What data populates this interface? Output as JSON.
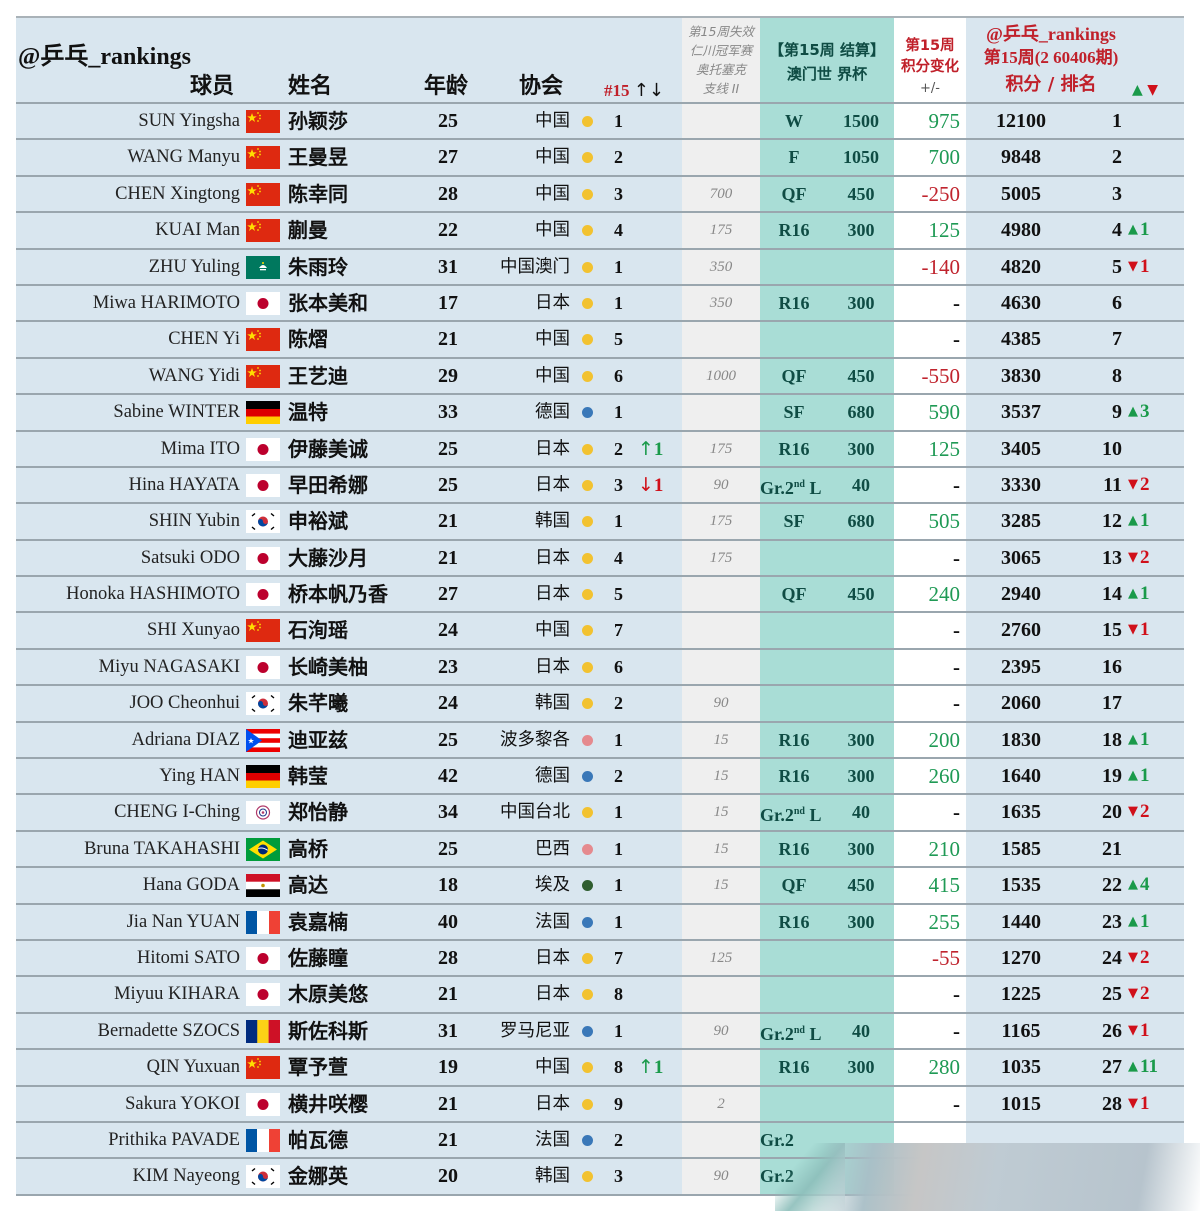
{
  "header": {
    "brand": "@乒乓_rankings",
    "col_player": "球员",
    "col_name": "姓名",
    "col_age": "年龄",
    "col_assoc": "协会",
    "col_natrank": "#15",
    "col_natrank_arrows": "↑↓",
    "col_expire": [
      "第15周失效",
      "仁川冠军赛",
      "奥托塞克",
      "支线 II"
    ],
    "col_event": [
      "【第15周 结算】",
      "澳门世 界杯"
    ],
    "col_change": [
      "第15周",
      "积分变化",
      "+/-"
    ],
    "col_rank": [
      "@乒乓_rankings",
      "第15周(2 60406期)",
      "积分 /   排名"
    ],
    "col_move_up": "▲",
    "col_move_down": "▼"
  },
  "colors": {
    "background": "#d9e6ef",
    "expire_col": "#efefef",
    "event_col": "#a9ddd6",
    "positive": "#1f9a55",
    "negative": "#c0242e",
    "header_red": "#c0202a",
    "dot_yellow": "#f2c230",
    "dot_blue": "#3a78b8",
    "dot_pink": "#e58a8e",
    "dot_green": "#2f5d2f"
  },
  "rows": [
    {
      "en": "SUN Yingsha",
      "flag": "cn",
      "cn": "孙颖莎",
      "age": "25",
      "assoc": "中国",
      "dot": "yellow",
      "nrank": "1",
      "nmove": "",
      "nmove_dir": "",
      "expire": "",
      "round": "W",
      "round_sup": "",
      "round_suffix": "",
      "pts": "1500",
      "chg": "975",
      "chg_type": "pos",
      "total": "12100",
      "rank": "1",
      "move": "",
      "move_dir": ""
    },
    {
      "en": "WANG Manyu",
      "flag": "cn",
      "cn": "王曼昱",
      "age": "27",
      "assoc": "中国",
      "dot": "yellow",
      "nrank": "2",
      "nmove": "",
      "nmove_dir": "",
      "expire": "",
      "round": "F",
      "round_sup": "",
      "round_suffix": "",
      "pts": "1050",
      "chg": "700",
      "chg_type": "pos",
      "total": "9848",
      "rank": "2",
      "move": "",
      "move_dir": ""
    },
    {
      "en": "CHEN Xingtong",
      "flag": "cn",
      "cn": "陈幸同",
      "age": "28",
      "assoc": "中国",
      "dot": "yellow",
      "nrank": "3",
      "nmove": "",
      "nmove_dir": "",
      "expire": "700",
      "round": "QF",
      "round_sup": "",
      "round_suffix": "",
      "pts": "450",
      "chg": "-250",
      "chg_type": "neg",
      "total": "5005",
      "rank": "3",
      "move": "",
      "move_dir": ""
    },
    {
      "en": "KUAI Man",
      "flag": "cn",
      "cn": "蒯曼",
      "age": "22",
      "assoc": "中国",
      "dot": "yellow",
      "nrank": "4",
      "nmove": "",
      "nmove_dir": "",
      "expire": "175",
      "round": "R16",
      "round_sup": "",
      "round_suffix": "",
      "pts": "300",
      "chg": "125",
      "chg_type": "pos",
      "total": "4980",
      "rank": "4",
      "move": "1",
      "move_dir": "up"
    },
    {
      "en": "ZHU Yuling",
      "flag": "mo",
      "cn": "朱雨玲",
      "age": "31",
      "assoc": "中国澳门",
      "dot": "yellow",
      "nrank": "1",
      "nmove": "",
      "nmove_dir": "",
      "expire": "350",
      "round": "",
      "round_sup": "",
      "round_suffix": "",
      "pts": "",
      "chg": "-140",
      "chg_type": "neg",
      "total": "4820",
      "rank": "5",
      "move": "1",
      "move_dir": "down"
    },
    {
      "en": "Miwa HARIMOTO",
      "flag": "jp",
      "cn": "张本美和",
      "age": "17",
      "assoc": "日本",
      "dot": "yellow",
      "nrank": "1",
      "nmove": "",
      "nmove_dir": "",
      "expire": "350",
      "round": "R16",
      "round_sup": "",
      "round_suffix": "",
      "pts": "300",
      "chg": "-",
      "chg_type": "nil",
      "total": "4630",
      "rank": "6",
      "move": "",
      "move_dir": ""
    },
    {
      "en": "CHEN Yi",
      "flag": "cn",
      "cn": "陈熠",
      "age": "21",
      "assoc": "中国",
      "dot": "yellow",
      "nrank": "5",
      "nmove": "",
      "nmove_dir": "",
      "expire": "",
      "round": "",
      "round_sup": "",
      "round_suffix": "",
      "pts": "",
      "chg": "-",
      "chg_type": "nil",
      "total": "4385",
      "rank": "7",
      "move": "",
      "move_dir": ""
    },
    {
      "en": "WANG Yidi",
      "flag": "cn",
      "cn": "王艺迪",
      "age": "29",
      "assoc": "中国",
      "dot": "yellow",
      "nrank": "6",
      "nmove": "",
      "nmove_dir": "",
      "expire": "1000",
      "round": "QF",
      "round_sup": "",
      "round_suffix": "",
      "pts": "450",
      "chg": "-550",
      "chg_type": "neg",
      "total": "3830",
      "rank": "8",
      "move": "",
      "move_dir": ""
    },
    {
      "en": "Sabine WINTER",
      "flag": "de",
      "cn": "温特",
      "age": "33",
      "assoc": "德国",
      "dot": "blue",
      "nrank": "1",
      "nmove": "",
      "nmove_dir": "",
      "expire": "",
      "round": "SF",
      "round_sup": "",
      "round_suffix": "",
      "pts": "680",
      "chg": "590",
      "chg_type": "pos",
      "total": "3537",
      "rank": "9",
      "move": "3",
      "move_dir": "up"
    },
    {
      "en": "Mima ITO",
      "flag": "jp",
      "cn": "伊藤美诚",
      "age": "25",
      "assoc": "日本",
      "dot": "yellow",
      "nrank": "2",
      "nmove": "1",
      "nmove_dir": "up",
      "expire": "175",
      "round": "R16",
      "round_sup": "",
      "round_suffix": "",
      "pts": "300",
      "chg": "125",
      "chg_type": "pos",
      "total": "3405",
      "rank": "10",
      "move": "",
      "move_dir": ""
    },
    {
      "en": "Hina HAYATA",
      "flag": "jp",
      "cn": "早田希娜",
      "age": "25",
      "assoc": "日本",
      "dot": "yellow",
      "nrank": "3",
      "nmove": "1",
      "nmove_dir": "down",
      "expire": "90",
      "round": "Gr.2",
      "round_sup": "nd",
      "round_suffix": " L",
      "pts": "40",
      "chg": "-",
      "chg_type": "nil",
      "total": "3330",
      "rank": "11",
      "move": "2",
      "move_dir": "down"
    },
    {
      "en": "SHIN Yubin",
      "flag": "kr",
      "cn": "申裕斌",
      "age": "21",
      "assoc": "韩国",
      "dot": "yellow",
      "nrank": "1",
      "nmove": "",
      "nmove_dir": "",
      "expire": "175",
      "round": "SF",
      "round_sup": "",
      "round_suffix": "",
      "pts": "680",
      "chg": "505",
      "chg_type": "pos",
      "total": "3285",
      "rank": "12",
      "move": "1",
      "move_dir": "up"
    },
    {
      "en": "Satsuki ODO",
      "flag": "jp",
      "cn": "大藤沙月",
      "age": "21",
      "assoc": "日本",
      "dot": "yellow",
      "nrank": "4",
      "nmove": "",
      "nmove_dir": "",
      "expire": "175",
      "round": "",
      "round_sup": "",
      "round_suffix": "",
      "pts": "",
      "chg": "-",
      "chg_type": "nil",
      "total": "3065",
      "rank": "13",
      "move": "2",
      "move_dir": "down"
    },
    {
      "en": "Honoka HASHIMOTO",
      "flag": "jp",
      "cn": "桥本帆乃香",
      "age": "27",
      "assoc": "日本",
      "dot": "yellow",
      "nrank": "5",
      "nmove": "",
      "nmove_dir": "",
      "expire": "",
      "round": "QF",
      "round_sup": "",
      "round_suffix": "",
      "pts": "450",
      "chg": "240",
      "chg_type": "pos",
      "total": "2940",
      "rank": "14",
      "move": "1",
      "move_dir": "up"
    },
    {
      "en": "SHI Xunyao",
      "flag": "cn",
      "cn": "石洵瑶",
      "age": "24",
      "assoc": "中国",
      "dot": "yellow",
      "nrank": "7",
      "nmove": "",
      "nmove_dir": "",
      "expire": "",
      "round": "",
      "round_sup": "",
      "round_suffix": "",
      "pts": "",
      "chg": "-",
      "chg_type": "nil",
      "total": "2760",
      "rank": "15",
      "move": "1",
      "move_dir": "down"
    },
    {
      "en": "Miyu NAGASAKI",
      "flag": "jp",
      "cn": "长崎美柚",
      "age": "23",
      "assoc": "日本",
      "dot": "yellow",
      "nrank": "6",
      "nmove": "",
      "nmove_dir": "",
      "expire": "",
      "round": "",
      "round_sup": "",
      "round_suffix": "",
      "pts": "",
      "chg": "-",
      "chg_type": "nil",
      "total": "2395",
      "rank": "16",
      "move": "",
      "move_dir": ""
    },
    {
      "en": "JOO Cheonhui",
      "flag": "kr",
      "cn": "朱芊曦",
      "age": "24",
      "assoc": "韩国",
      "dot": "yellow",
      "nrank": "2",
      "nmove": "",
      "nmove_dir": "",
      "expire": "90",
      "round": "",
      "round_sup": "",
      "round_suffix": "",
      "pts": "",
      "chg": "-",
      "chg_type": "nil",
      "total": "2060",
      "rank": "17",
      "move": "",
      "move_dir": ""
    },
    {
      "en": "Adriana DIAZ",
      "flag": "pr",
      "cn": "迪亚兹",
      "age": "25",
      "assoc": "波多黎各",
      "dot": "pink",
      "nrank": "1",
      "nmove": "",
      "nmove_dir": "",
      "expire": "15",
      "round": "R16",
      "round_sup": "",
      "round_suffix": "",
      "pts": "300",
      "chg": "200",
      "chg_type": "pos",
      "total": "1830",
      "rank": "18",
      "move": "1",
      "move_dir": "up"
    },
    {
      "en": "Ying HAN",
      "flag": "de",
      "cn": "韩莹",
      "age": "42",
      "assoc": "德国",
      "dot": "blue",
      "nrank": "2",
      "nmove": "",
      "nmove_dir": "",
      "expire": "15",
      "round": "R16",
      "round_sup": "",
      "round_suffix": "",
      "pts": "300",
      "chg": "260",
      "chg_type": "pos",
      "total": "1640",
      "rank": "19",
      "move": "1",
      "move_dir": "up"
    },
    {
      "en": "CHENG I-Ching",
      "flag": "tpe",
      "cn": "郑怡静",
      "age": "34",
      "assoc": "中国台北",
      "dot": "yellow",
      "nrank": "1",
      "nmove": "",
      "nmove_dir": "",
      "expire": "15",
      "round": "Gr.2",
      "round_sup": "nd",
      "round_suffix": " L",
      "pts": "40",
      "chg": "-",
      "chg_type": "nil",
      "total": "1635",
      "rank": "20",
      "move": "2",
      "move_dir": "down"
    },
    {
      "en": "Bruna TAKAHASHI",
      "flag": "br",
      "cn": "高桥",
      "age": "25",
      "assoc": "巴西",
      "dot": "pink",
      "nrank": "1",
      "nmove": "",
      "nmove_dir": "",
      "expire": "15",
      "round": "R16",
      "round_sup": "",
      "round_suffix": "",
      "pts": "300",
      "chg": "210",
      "chg_type": "pos",
      "total": "1585",
      "rank": "21",
      "move": "",
      "move_dir": ""
    },
    {
      "en": "Hana GODA",
      "flag": "eg",
      "cn": "高达",
      "age": "18",
      "assoc": "埃及",
      "dot": "green",
      "nrank": "1",
      "nmove": "",
      "nmove_dir": "",
      "expire": "15",
      "round": "QF",
      "round_sup": "",
      "round_suffix": "",
      "pts": "450",
      "chg": "415",
      "chg_type": "pos",
      "total": "1535",
      "rank": "22",
      "move": "4",
      "move_dir": "up"
    },
    {
      "en": "Jia Nan YUAN",
      "flag": "fr",
      "cn": "袁嘉楠",
      "age": "40",
      "assoc": "法国",
      "dot": "blue",
      "nrank": "1",
      "nmove": "",
      "nmove_dir": "",
      "expire": "",
      "round": "R16",
      "round_sup": "",
      "round_suffix": "",
      "pts": "300",
      "chg": "255",
      "chg_type": "pos",
      "total": "1440",
      "rank": "23",
      "move": "1",
      "move_dir": "up"
    },
    {
      "en": "Hitomi SATO",
      "flag": "jp",
      "cn": "佐藤瞳",
      "age": "28",
      "assoc": "日本",
      "dot": "yellow",
      "nrank": "7",
      "nmove": "",
      "nmove_dir": "",
      "expire": "125",
      "round": "",
      "round_sup": "",
      "round_suffix": "",
      "pts": "",
      "chg": "-55",
      "chg_type": "neg",
      "total": "1270",
      "rank": "24",
      "move": "2",
      "move_dir": "down"
    },
    {
      "en": "Miyuu KIHARA",
      "flag": "jp",
      "cn": "木原美悠",
      "age": "21",
      "assoc": "日本",
      "dot": "yellow",
      "nrank": "8",
      "nmove": "",
      "nmove_dir": "",
      "expire": "",
      "round": "",
      "round_sup": "",
      "round_suffix": "",
      "pts": "",
      "chg": "-",
      "chg_type": "nil",
      "total": "1225",
      "rank": "25",
      "move": "2",
      "move_dir": "down"
    },
    {
      "en": "Bernadette SZOCS",
      "flag": "ro",
      "cn": "斯佐科斯",
      "age": "31",
      "assoc": "罗马尼亚",
      "dot": "blue",
      "nrank": "1",
      "nmove": "",
      "nmove_dir": "",
      "expire": "90",
      "round": "Gr.2",
      "round_sup": "nd",
      "round_suffix": " L",
      "pts": "40",
      "chg": "-",
      "chg_type": "nil",
      "total": "1165",
      "rank": "26",
      "move": "1",
      "move_dir": "down"
    },
    {
      "en": "QIN Yuxuan",
      "flag": "cn",
      "cn": "覃予萱",
      "age": "19",
      "assoc": "中国",
      "dot": "yellow",
      "nrank": "8",
      "nmove": "1",
      "nmove_dir": "up",
      "expire": "",
      "round": "R16",
      "round_sup": "",
      "round_suffix": "",
      "pts": "300",
      "chg": "280",
      "chg_type": "pos",
      "total": "1035",
      "rank": "27",
      "move": "11",
      "move_dir": "up"
    },
    {
      "en": "Sakura YOKOI",
      "flag": "jp",
      "cn": "横井咲樱",
      "age": "21",
      "assoc": "日本",
      "dot": "yellow",
      "nrank": "9",
      "nmove": "",
      "nmove_dir": "",
      "expire": "2",
      "round": "",
      "round_sup": "",
      "round_suffix": "",
      "pts": "",
      "chg": "-",
      "chg_type": "nil",
      "total": "1015",
      "rank": "28",
      "move": "1",
      "move_dir": "down"
    },
    {
      "en": "Prithika PAVADE",
      "flag": "fr",
      "cn": "帕瓦德",
      "age": "21",
      "assoc": "法国",
      "dot": "blue",
      "nrank": "2",
      "nmove": "",
      "nmove_dir": "",
      "expire": "",
      "round": "Gr.2",
      "round_sup": "",
      "round_suffix": "",
      "pts": "",
      "chg": "",
      "chg_type": "nil",
      "total": "",
      "rank": "",
      "move": "",
      "move_dir": ""
    },
    {
      "en": "KIM Nayeong",
      "flag": "kr",
      "cn": "金娜英",
      "age": "20",
      "assoc": "韩国",
      "dot": "yellow",
      "nrank": "3",
      "nmove": "",
      "nmove_dir": "",
      "expire": "90",
      "round": "Gr.2",
      "round_sup": "",
      "round_suffix": "",
      "pts": "",
      "chg": "",
      "chg_type": "nil",
      "total": "",
      "rank": "",
      "move": "",
      "move_dir": ""
    }
  ]
}
